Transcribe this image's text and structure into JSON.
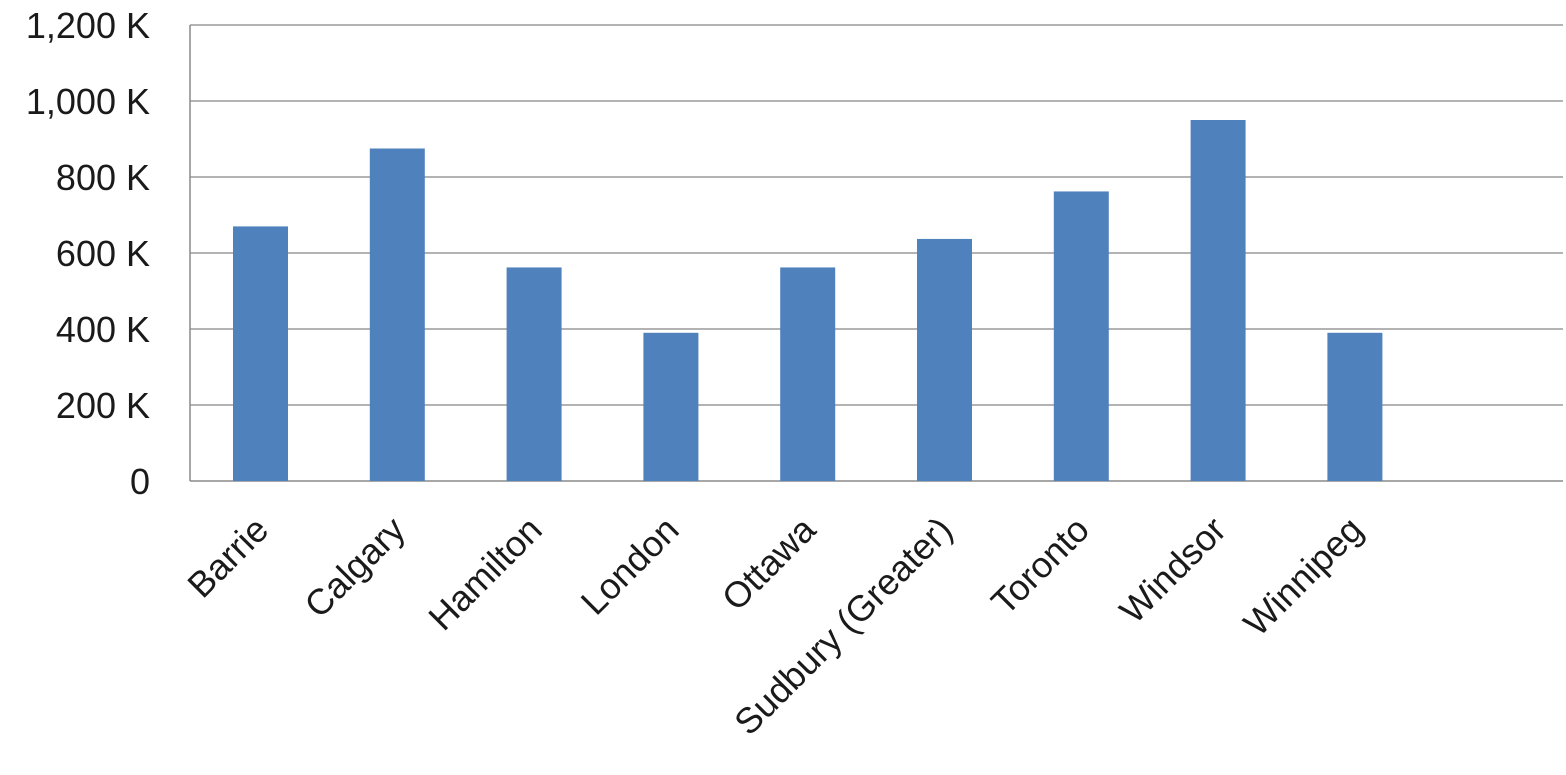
{
  "chart_data": {
    "type": "bar",
    "title": "",
    "xlabel": "",
    "ylabel": "",
    "categories": [
      "Barrie",
      "Calgary",
      "Hamilton",
      "London",
      "Ottawa",
      "Sudbury (Greater)",
      "Toronto",
      "Windsor",
      "Winnipeg"
    ],
    "values": [
      670000,
      875000,
      562000,
      390000,
      562000,
      637000,
      762000,
      950000,
      390000
    ],
    "ylim": [
      0,
      1200000
    ],
    "y_ticks": [
      0,
      200000,
      400000,
      600000,
      800000,
      1000000,
      1200000
    ],
    "y_tick_labels": [
      "0",
      "200 K",
      "400 K",
      "600 K",
      "800 K",
      "1,000 K",
      "1,200 K"
    ],
    "grid": true,
    "legend": "none",
    "bar_color": "#4f81bd"
  }
}
